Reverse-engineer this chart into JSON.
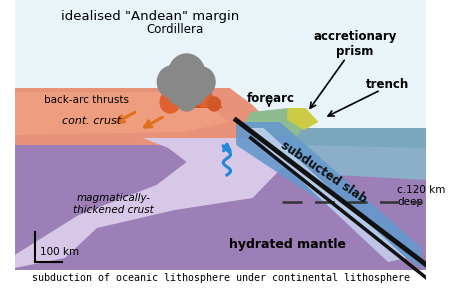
{
  "title": "idealised \"Andean\" margin",
  "subtitle": "subduction of oceanic lithosphere under continental lithosphere",
  "bg_color": "#ffffff",
  "labels": {
    "cordillera": "Cordillera",
    "back_arc": "back-arc thrusts",
    "cont_crust": "cont. crust",
    "forearc": "forearc",
    "accretionary": "accretionary\nprism",
    "trench": "trench",
    "subducted_slab": "subducted slab",
    "magmatic": "magmatically-\nthickened crust",
    "hydrated": "hydrated mantle",
    "depth": "c.120 km\ndeep",
    "scale": "100 km"
  },
  "colors": {
    "ocean_crust": "#7BA7BC",
    "cont_crust": "#E8927A",
    "mantle_lower": "#9B7FB6",
    "mantle_upper": "#8B9DC3",
    "slab_band": "#6699CC",
    "forearc_green": "#8FBC8F",
    "wedge_light": "#D8C8E8",
    "slab_line": "#111111",
    "dashed_line": "#333333",
    "volcano_gray": "#888888",
    "orange_arrow": "#E07020",
    "sky": "#E8F4F8",
    "back_arc_orange": "#F0A080",
    "acc_prism_yellow": "#CCCC44",
    "upper_mantle_blue": "#8BAFC8",
    "slab_blue": "#6699BB",
    "slab_center": "#C8D8F0",
    "lava1": "#E06030",
    "lava2": "#CC4418",
    "blue_fluid": "#2288DD",
    "black": "#111111"
  }
}
